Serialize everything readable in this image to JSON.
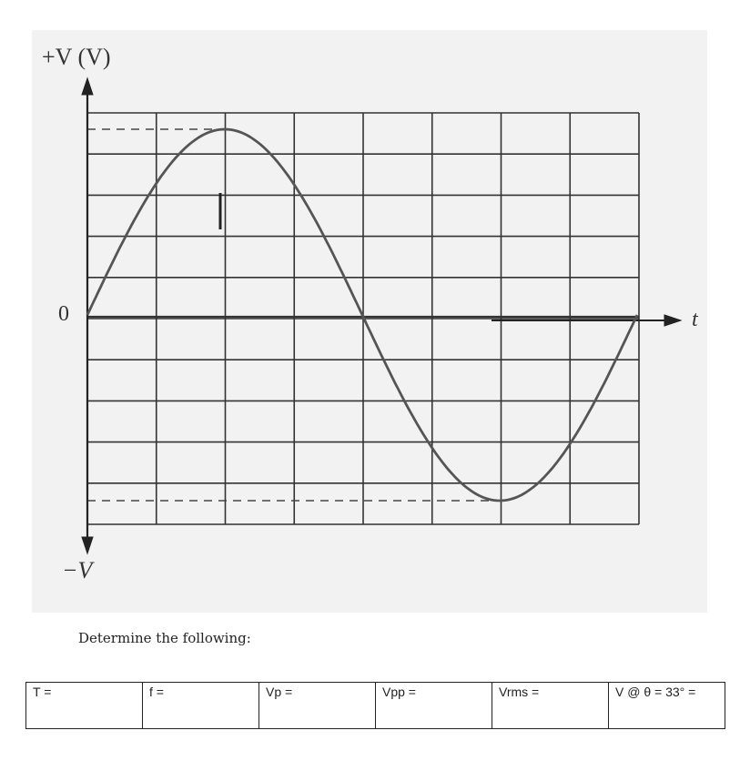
{
  "graph": {
    "y_axis_top_label": "+V (V)",
    "y_axis_bottom_label": "−V",
    "origin_label": "0",
    "x_axis_label": "t",
    "grid_columns": 8,
    "grid_rows": 10,
    "waveform": "sine",
    "cycles_shown": 1,
    "line_color": "#555555"
  },
  "instruction": "Determine the following:",
  "answer_cells": [
    "T =",
    "f =",
    "Vp =",
    "Vpp =",
    "Vrms =",
    "V @ θ = 33°   ="
  ]
}
